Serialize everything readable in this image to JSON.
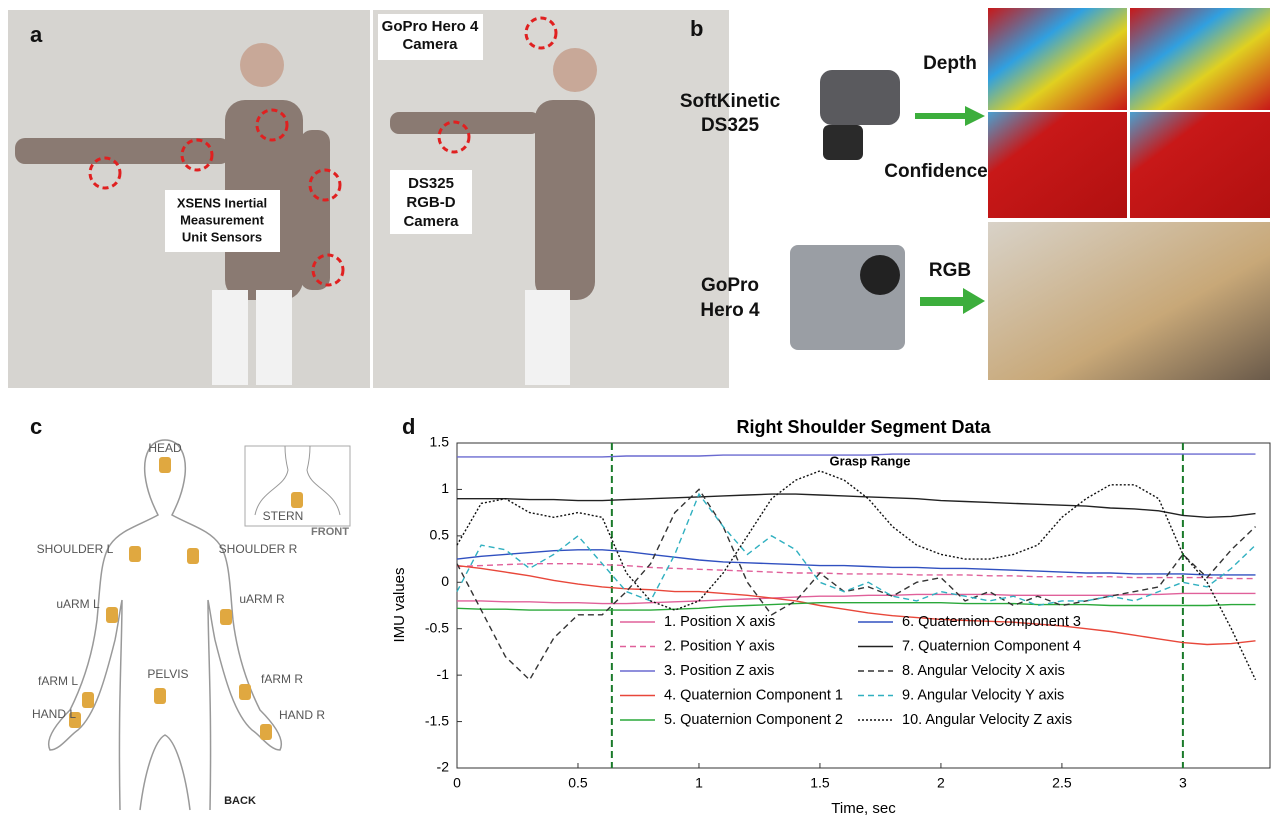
{
  "panels": {
    "a": {
      "label": "a",
      "gopro_callout": [
        "GoPro Hero 4",
        "Camera"
      ],
      "xsens_callout": [
        "XSENS Inertial",
        "Measurement",
        "Unit Sensors"
      ],
      "ds325_callout": [
        "DS325",
        "RGB-D",
        "Camera"
      ]
    },
    "b": {
      "label": "b",
      "softkinetic": [
        "SoftKinetic",
        "DS325"
      ],
      "depth": "Depth",
      "confidence": "Confidence",
      "gopro": [
        "GoPro",
        "Hero 4"
      ],
      "rgb": "RGB"
    },
    "c": {
      "label": "c",
      "sensors": [
        "HEAD",
        "SHOULDER L",
        "SHOULDER R",
        "uARM L",
        "uARM R",
        "fARM L",
        "fARM R",
        "HAND L",
        "HAND R",
        "PELVIS",
        "STERN"
      ],
      "front": "FRONT",
      "back": "BACK"
    },
    "d": {
      "label": "d"
    }
  },
  "chart_data": {
    "type": "line",
    "title": "Right Shoulder Segment Data",
    "x_label": "Time, sec",
    "y_label": "IMU values",
    "annotation": "Grasp Range",
    "vlines": [
      0.64,
      3.0
    ],
    "vline_color": "#1a7a2a",
    "xlim": [
      0,
      3.36
    ],
    "ylim": [
      -2,
      1.5
    ],
    "xticks": [
      0,
      0.5,
      1,
      1.5,
      2,
      2.5,
      3
    ],
    "yticks": [
      -2,
      -1.5,
      -1,
      -0.5,
      0,
      0.5,
      1,
      1.5
    ],
    "x": [
      0,
      0.1,
      0.2,
      0.3,
      0.4,
      0.5,
      0.6,
      0.7,
      0.8,
      0.9,
      1.0,
      1.1,
      1.2,
      1.3,
      1.4,
      1.5,
      1.6,
      1.7,
      1.8,
      1.9,
      2.0,
      2.1,
      2.2,
      2.3,
      2.4,
      2.5,
      2.6,
      2.7,
      2.8,
      2.9,
      3.0,
      3.1,
      3.2,
      3.3
    ],
    "series": [
      {
        "name": "1. Position X axis",
        "color": "#e0609a",
        "dash": "solid",
        "values": [
          -0.2,
          -0.2,
          -0.21,
          -0.21,
          -0.22,
          -0.22,
          -0.23,
          -0.23,
          -0.22,
          -0.21,
          -0.2,
          -0.19,
          -0.18,
          -0.17,
          -0.16,
          -0.15,
          -0.15,
          -0.14,
          -0.14,
          -0.13,
          -0.13,
          -0.13,
          -0.13,
          -0.14,
          -0.14,
          -0.14,
          -0.14,
          -0.14,
          -0.13,
          -0.13,
          -0.12,
          -0.12,
          -0.12,
          -0.12
        ]
      },
      {
        "name": "2. Position Y axis",
        "color": "#e0609a",
        "dash": "dashed",
        "values": [
          0.17,
          0.18,
          0.19,
          0.2,
          0.2,
          0.2,
          0.19,
          0.18,
          0.16,
          0.15,
          0.14,
          0.13,
          0.12,
          0.11,
          0.1,
          0.1,
          0.09,
          0.09,
          0.09,
          0.08,
          0.08,
          0.08,
          0.07,
          0.07,
          0.06,
          0.06,
          0.06,
          0.06,
          0.05,
          0.05,
          0.05,
          0.05,
          0.04,
          0.04
        ]
      },
      {
        "name": "3. Position Z axis",
        "color": "#6a6ad0",
        "dash": "solid",
        "values": [
          1.35,
          1.35,
          1.35,
          1.35,
          1.35,
          1.35,
          1.35,
          1.36,
          1.36,
          1.36,
          1.36,
          1.37,
          1.37,
          1.37,
          1.37,
          1.37,
          1.37,
          1.37,
          1.38,
          1.38,
          1.38,
          1.38,
          1.38,
          1.38,
          1.38,
          1.38,
          1.38,
          1.38,
          1.38,
          1.38,
          1.38,
          1.38,
          1.38,
          1.38
        ]
      },
      {
        "name": "4. Quaternion Component 1",
        "color": "#e8473a",
        "dash": "solid",
        "values": [
          0.18,
          0.15,
          0.11,
          0.07,
          0.02,
          -0.02,
          -0.05,
          -0.07,
          -0.08,
          -0.1,
          -0.1,
          -0.12,
          -0.14,
          -0.17,
          -0.2,
          -0.25,
          -0.29,
          -0.33,
          -0.36,
          -0.38,
          -0.4,
          -0.41,
          -0.42,
          -0.43,
          -0.45,
          -0.47,
          -0.5,
          -0.53,
          -0.57,
          -0.61,
          -0.65,
          -0.67,
          -0.66,
          -0.63
        ]
      },
      {
        "name": "5. Quaternion Component 2",
        "color": "#2aa83a",
        "dash": "solid",
        "values": [
          -0.28,
          -0.29,
          -0.29,
          -0.3,
          -0.3,
          -0.3,
          -0.3,
          -0.3,
          -0.3,
          -0.29,
          -0.28,
          -0.26,
          -0.25,
          -0.24,
          -0.23,
          -0.22,
          -0.22,
          -0.22,
          -0.22,
          -0.22,
          -0.22,
          -0.23,
          -0.23,
          -0.23,
          -0.24,
          -0.24,
          -0.24,
          -0.25,
          -0.25,
          -0.25,
          -0.25,
          -0.25,
          -0.24,
          -0.24
        ]
      },
      {
        "name": "6. Quaternion Component 3",
        "color": "#3050c0",
        "dash": "solid",
        "values": [
          0.25,
          0.28,
          0.3,
          0.32,
          0.34,
          0.35,
          0.35,
          0.33,
          0.3,
          0.27,
          0.24,
          0.22,
          0.21,
          0.2,
          0.19,
          0.18,
          0.18,
          0.17,
          0.16,
          0.16,
          0.15,
          0.15,
          0.14,
          0.13,
          0.12,
          0.11,
          0.1,
          0.1,
          0.09,
          0.09,
          0.09,
          0.08,
          0.08,
          0.08
        ]
      },
      {
        "name": "7. Quaternion Component 4",
        "color": "#222222",
        "dash": "solid",
        "values": [
          0.9,
          0.9,
          0.9,
          0.89,
          0.89,
          0.88,
          0.88,
          0.89,
          0.9,
          0.91,
          0.92,
          0.93,
          0.94,
          0.95,
          0.95,
          0.94,
          0.93,
          0.92,
          0.91,
          0.9,
          0.88,
          0.87,
          0.86,
          0.85,
          0.84,
          0.83,
          0.82,
          0.8,
          0.79,
          0.77,
          0.72,
          0.7,
          0.71,
          0.74
        ]
      },
      {
        "name": "8. Angular Velocity X axis",
        "color": "#333333",
        "dash": "dashed",
        "values": [
          0.2,
          -0.3,
          -0.8,
          -1.05,
          -0.6,
          -0.35,
          -0.35,
          -0.1,
          0.2,
          0.75,
          1.0,
          0.6,
          0.0,
          -0.35,
          -0.2,
          0.1,
          -0.1,
          -0.05,
          -0.15,
          0.0,
          0.05,
          -0.2,
          -0.1,
          -0.25,
          -0.15,
          -0.25,
          -0.2,
          -0.15,
          -0.1,
          -0.05,
          0.3,
          0.05,
          0.35,
          0.6
        ]
      },
      {
        "name": "9. Angular Velocity Y axis",
        "color": "#30b0c0",
        "dash": "dashed",
        "values": [
          -0.1,
          0.4,
          0.35,
          0.15,
          0.3,
          0.5,
          0.2,
          -0.1,
          -0.2,
          0.3,
          0.95,
          0.6,
          0.3,
          0.5,
          0.35,
          0.0,
          -0.1,
          0.0,
          -0.15,
          -0.2,
          -0.1,
          -0.15,
          -0.2,
          -0.15,
          -0.25,
          -0.2,
          -0.2,
          -0.15,
          -0.2,
          -0.1,
          0.0,
          -0.05,
          0.15,
          0.4
        ]
      },
      {
        "name": "10. Angular Velocity Z axis",
        "color": "#111111",
        "dash": "dotted",
        "values": [
          0.4,
          0.85,
          0.9,
          0.75,
          0.7,
          0.75,
          0.7,
          0.1,
          -0.2,
          -0.3,
          -0.2,
          0.1,
          0.5,
          0.9,
          1.1,
          1.2,
          1.1,
          0.9,
          0.6,
          0.4,
          0.3,
          0.25,
          0.25,
          0.3,
          0.4,
          0.7,
          0.9,
          1.05,
          1.05,
          0.9,
          0.3,
          0.0,
          -0.5,
          -1.05
        ]
      }
    ]
  }
}
